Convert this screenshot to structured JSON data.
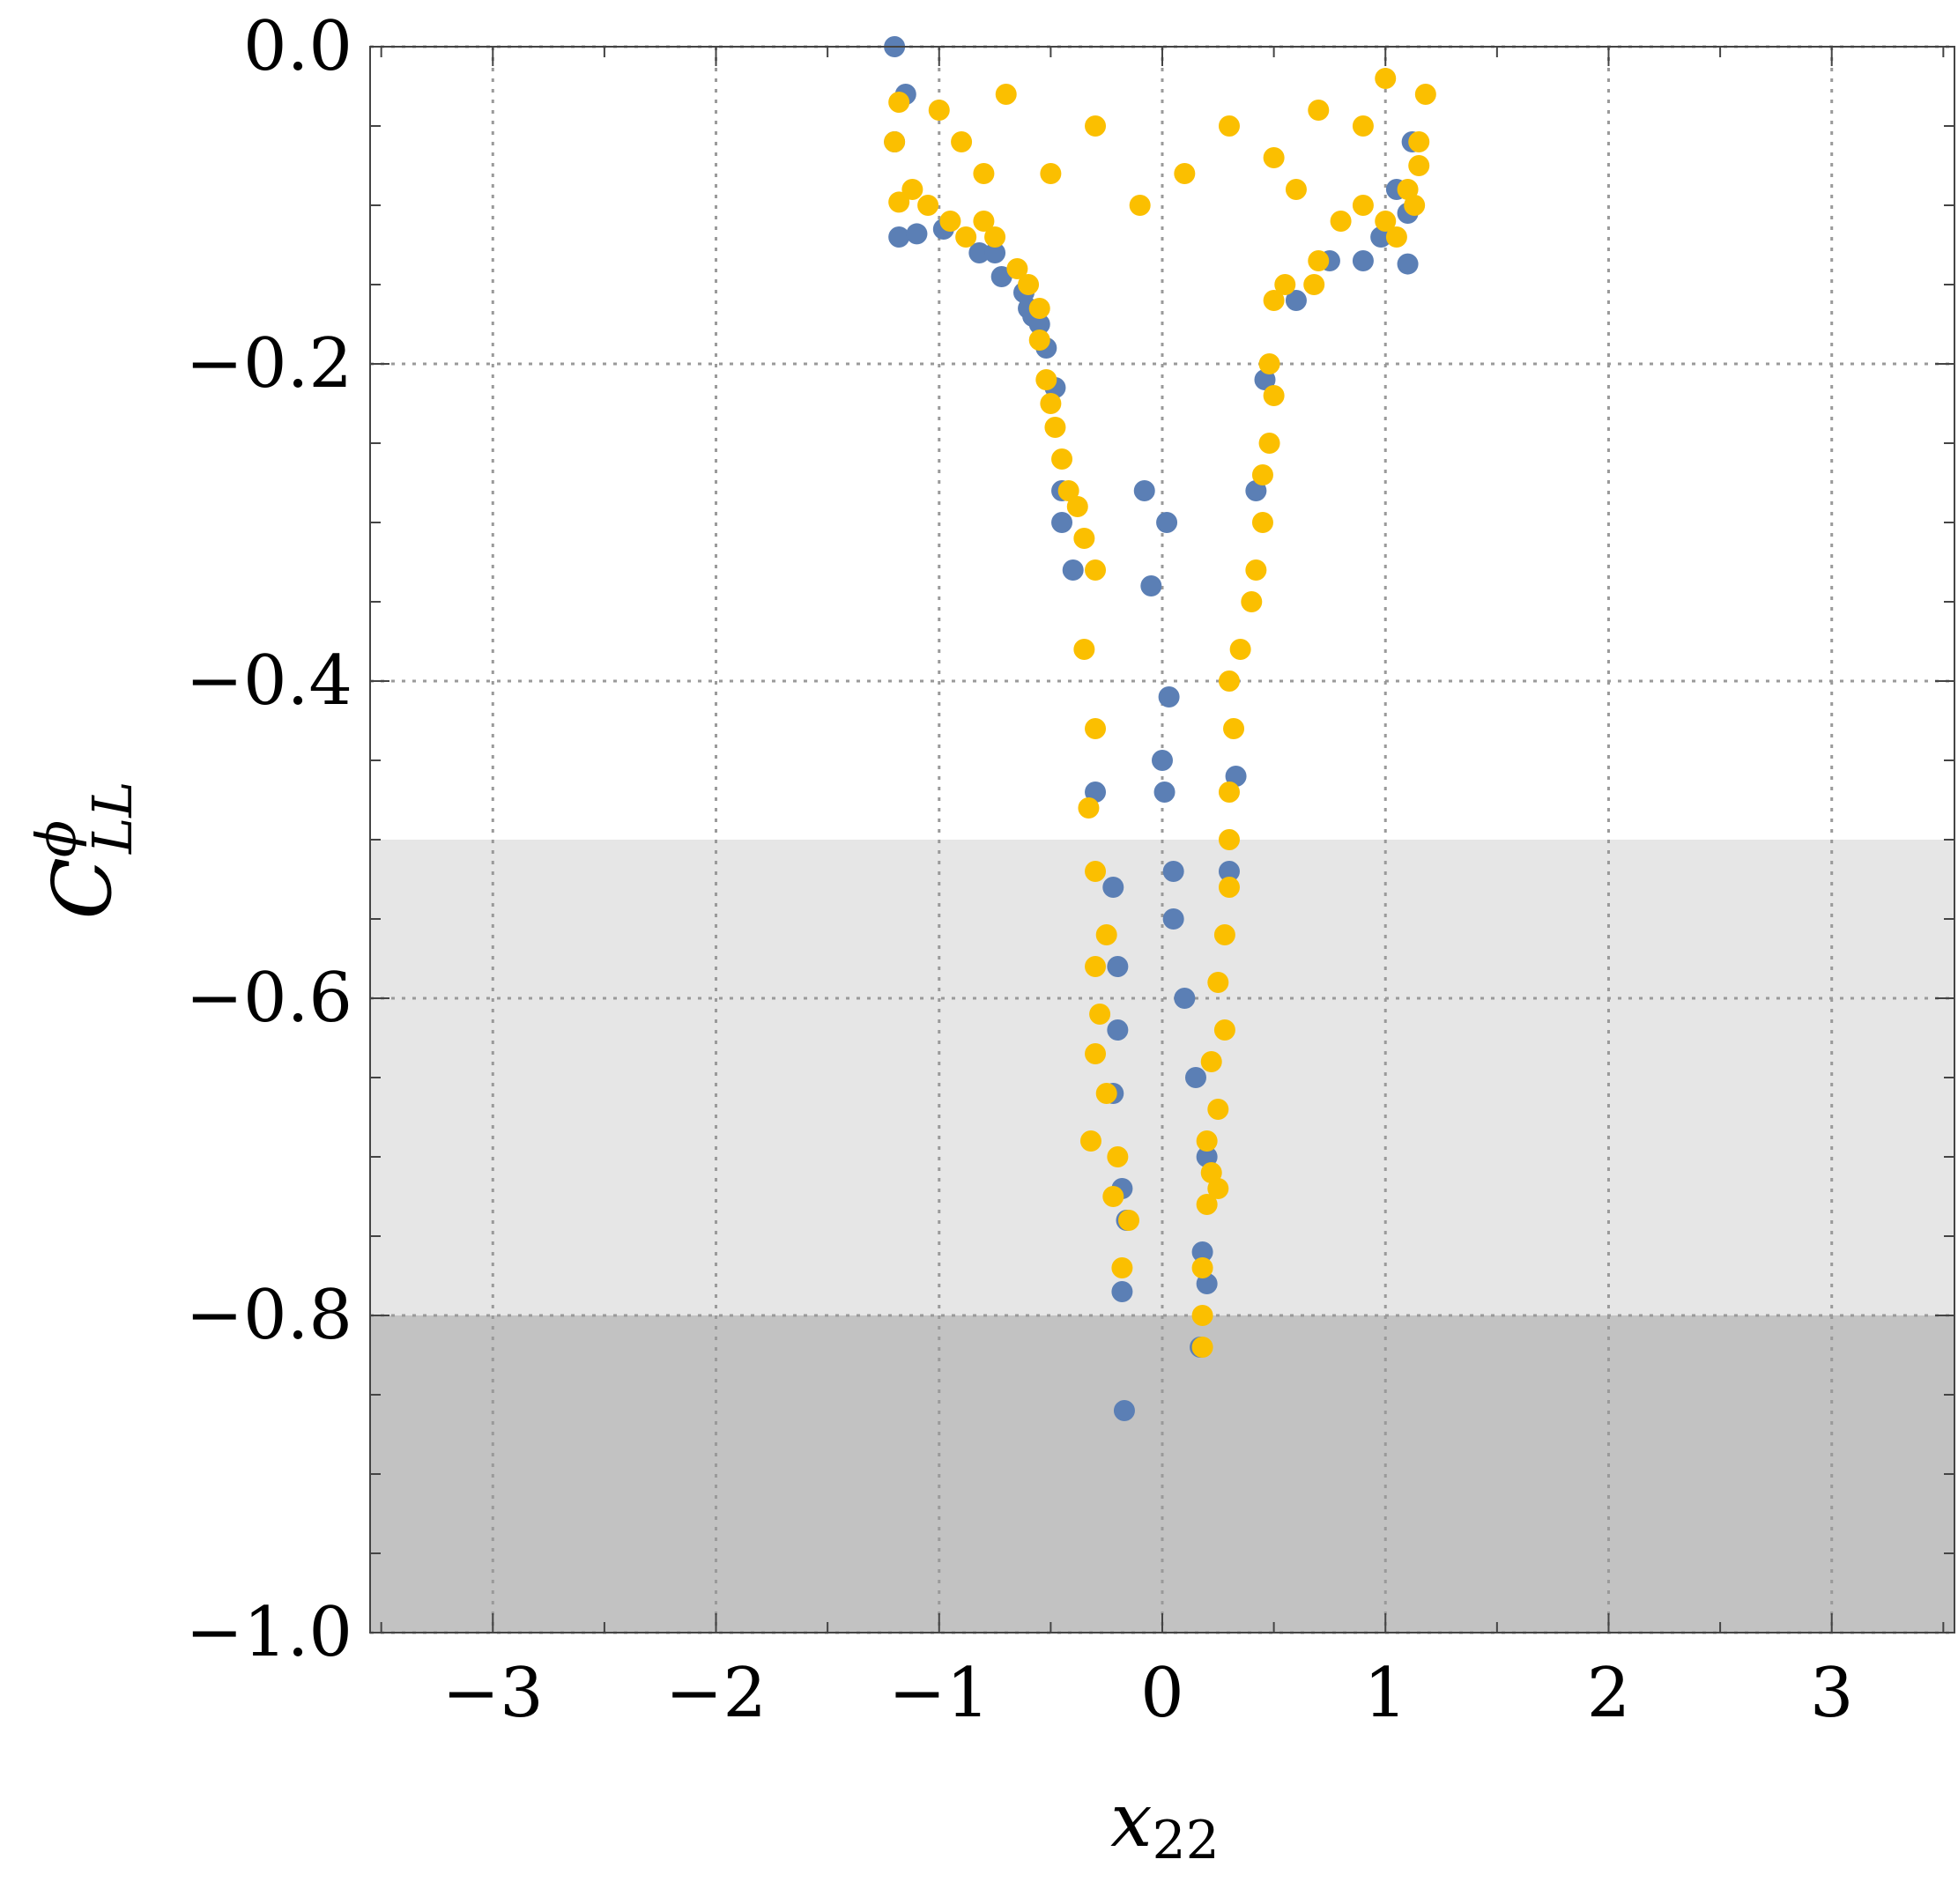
{
  "chart_data": {
    "type": "scatter",
    "xlabel": {
      "base": "x",
      "sub": "22"
    },
    "ylabel": {
      "base": "C",
      "sup": "ϕ",
      "sub": "LL"
    },
    "xlim": [
      -3.55,
      3.55
    ],
    "ylim": [
      -1.0,
      0.0
    ],
    "x_ticks": [
      -3,
      -2,
      -1,
      0,
      1,
      2,
      3
    ],
    "x_tick_labels": [
      "−3",
      "−2",
      "−1",
      "0",
      "1",
      "2",
      "3"
    ],
    "y_ticks": [
      0.0,
      -0.2,
      -0.4,
      -0.6,
      -0.8,
      -1.0
    ],
    "y_tick_labels": [
      "0.0",
      "−0.2",
      "−0.4",
      "−0.6",
      "−0.8",
      "−1.0"
    ],
    "grid": true,
    "shaded_bands": [
      {
        "y0": -0.8,
        "y1": -0.5,
        "color": "#e6e6e6"
      },
      {
        "y0": -1.0,
        "y1": -0.8,
        "color": "#c2c2c2"
      }
    ],
    "series": [
      {
        "color": "#5b7fb5",
        "marker": "circle",
        "points": [
          [
            -1.18,
            -0.12
          ],
          [
            -1.1,
            -0.118
          ],
          [
            -0.98,
            -0.115
          ],
          [
            -0.82,
            -0.13
          ],
          [
            -0.75,
            -0.13
          ],
          [
            -0.72,
            -0.145
          ],
          [
            -0.62,
            -0.155
          ],
          [
            -0.6,
            -0.165
          ],
          [
            -0.58,
            -0.17
          ],
          [
            -0.55,
            -0.175
          ],
          [
            -0.52,
            -0.19
          ],
          [
            -0.48,
            -0.215
          ],
          [
            -0.45,
            -0.28
          ],
          [
            -0.45,
            -0.3
          ],
          [
            -0.4,
            -0.33
          ],
          [
            -0.3,
            -0.47
          ],
          [
            -0.22,
            -0.53
          ],
          [
            -0.2,
            -0.58
          ],
          [
            -0.2,
            -0.62
          ],
          [
            -0.22,
            -0.66
          ],
          [
            -0.18,
            -0.72
          ],
          [
            -0.16,
            -0.74
          ],
          [
            -0.18,
            -0.785
          ],
          [
            -0.17,
            -0.86
          ],
          [
            -0.08,
            -0.28
          ],
          [
            -0.05,
            -0.34
          ],
          [
            0.02,
            -0.3
          ],
          [
            0.03,
            -0.41
          ],
          [
            0.0,
            -0.45
          ],
          [
            0.01,
            -0.47
          ],
          [
            0.05,
            -0.52
          ],
          [
            0.05,
            -0.55
          ],
          [
            0.1,
            -0.6
          ],
          [
            0.15,
            -0.65
          ],
          [
            0.2,
            -0.7
          ],
          [
            0.18,
            -0.76
          ],
          [
            0.2,
            -0.78
          ],
          [
            0.17,
            -0.82
          ],
          [
            0.3,
            -0.52
          ],
          [
            0.33,
            -0.46
          ],
          [
            0.42,
            -0.28
          ],
          [
            0.46,
            -0.21
          ],
          [
            0.6,
            -0.16
          ],
          [
            0.75,
            -0.135
          ],
          [
            0.9,
            -0.135
          ],
          [
            0.98,
            -0.12
          ],
          [
            1.1,
            -0.105
          ],
          [
            1.1,
            -0.137
          ],
          [
            1.05,
            -0.09
          ],
          [
            1.12,
            -0.06
          ],
          [
            -1.2,
            0.0
          ],
          [
            -1.15,
            -0.03
          ],
          [
            -1.2,
            -0.06
          ]
        ]
      },
      {
        "color": "#fbbf00",
        "marker": "circle",
        "points": [
          [
            -1.18,
            -0.098
          ],
          [
            -1.18,
            -0.035
          ],
          [
            -1.2,
            -0.06
          ],
          [
            -1.12,
            -0.09
          ],
          [
            -1.05,
            -0.1
          ],
          [
            -0.95,
            -0.11
          ],
          [
            -0.88,
            -0.12
          ],
          [
            -0.8,
            -0.11
          ],
          [
            -0.75,
            -0.12
          ],
          [
            -0.65,
            -0.14
          ],
          [
            -0.6,
            -0.15
          ],
          [
            -0.55,
            -0.165
          ],
          [
            -0.55,
            -0.185
          ],
          [
            -0.52,
            -0.21
          ],
          [
            -0.5,
            -0.225
          ],
          [
            -0.48,
            -0.24
          ],
          [
            -0.45,
            -0.26
          ],
          [
            -0.42,
            -0.28
          ],
          [
            -0.38,
            -0.29
          ],
          [
            -0.35,
            -0.31
          ],
          [
            -0.3,
            -0.33
          ],
          [
            -0.35,
            -0.38
          ],
          [
            -0.3,
            -0.43
          ],
          [
            -0.33,
            -0.48
          ],
          [
            -0.3,
            -0.52
          ],
          [
            -0.25,
            -0.56
          ],
          [
            -0.3,
            -0.58
          ],
          [
            -0.28,
            -0.61
          ],
          [
            -0.3,
            -0.635
          ],
          [
            -0.32,
            -0.69
          ],
          [
            -0.25,
            -0.66
          ],
          [
            -0.2,
            -0.7
          ],
          [
            -0.22,
            -0.725
          ],
          [
            -0.15,
            -0.74
          ],
          [
            -0.18,
            -0.77
          ],
          [
            1.18,
            -0.03
          ],
          [
            1.15,
            -0.06
          ],
          [
            1.15,
            -0.075
          ],
          [
            1.13,
            -0.1
          ],
          [
            1.1,
            -0.09
          ],
          [
            1.05,
            -0.12
          ],
          [
            1.0,
            -0.11
          ],
          [
            0.9,
            -0.1
          ],
          [
            0.8,
            -0.11
          ],
          [
            0.7,
            -0.135
          ],
          [
            0.68,
            -0.15
          ],
          [
            0.55,
            -0.15
          ],
          [
            0.5,
            -0.16
          ],
          [
            0.48,
            -0.2
          ],
          [
            0.5,
            -0.22
          ],
          [
            0.48,
            -0.25
          ],
          [
            0.45,
            -0.27
          ],
          [
            0.45,
            -0.3
          ],
          [
            0.42,
            -0.33
          ],
          [
            0.4,
            -0.35
          ],
          [
            0.35,
            -0.38
          ],
          [
            0.3,
            -0.4
          ],
          [
            0.32,
            -0.43
          ],
          [
            0.3,
            -0.47
          ],
          [
            0.3,
            -0.5
          ],
          [
            0.3,
            -0.53
          ],
          [
            0.28,
            -0.56
          ],
          [
            0.25,
            -0.59
          ],
          [
            0.28,
            -0.62
          ],
          [
            0.22,
            -0.64
          ],
          [
            0.25,
            -0.67
          ],
          [
            0.2,
            -0.69
          ],
          [
            0.22,
            -0.71
          ],
          [
            0.2,
            -0.73
          ],
          [
            0.25,
            -0.72
          ],
          [
            0.18,
            -0.77
          ],
          [
            0.18,
            -0.8
          ],
          [
            0.18,
            -0.82
          ],
          [
            -1.0,
            -0.04
          ],
          [
            -0.9,
            -0.06
          ],
          [
            -0.7,
            -0.03
          ],
          [
            -0.5,
            -0.08
          ],
          [
            -0.3,
            -0.05
          ],
          [
            -0.1,
            -0.1
          ],
          [
            0.1,
            -0.08
          ],
          [
            0.3,
            -0.05
          ],
          [
            0.5,
            -0.07
          ],
          [
            0.7,
            -0.04
          ],
          [
            0.9,
            -0.05
          ],
          [
            1.0,
            -0.02
          ],
          [
            -0.8,
            -0.08
          ],
          [
            0.6,
            -0.09
          ]
        ]
      }
    ]
  }
}
